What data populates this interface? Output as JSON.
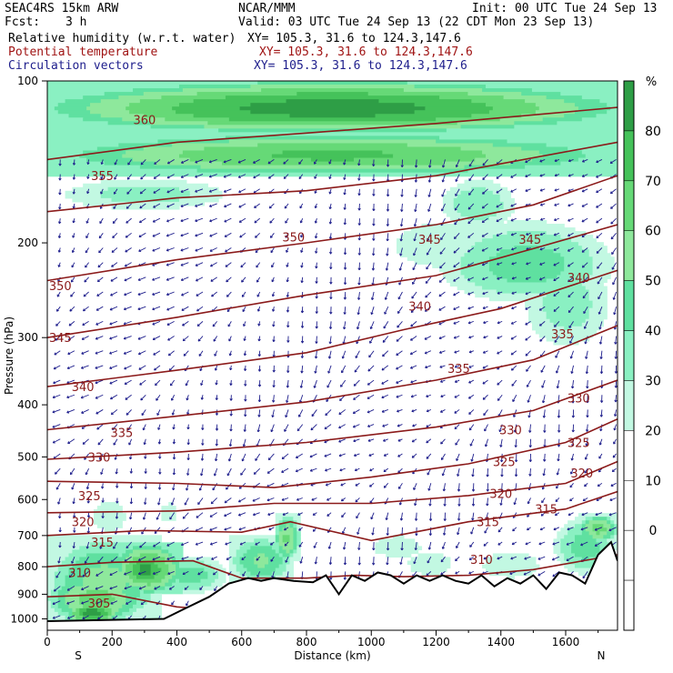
{
  "header": {
    "model": "SEAC4RS 15km ARW",
    "org": "NCAR/MMM",
    "init": "Init: 00 UTC Tue 24 Sep 13",
    "fcst_label": "Fcst:",
    "fcst_value": "3 h",
    "valid": "Valid: 03 UTC Tue 24 Sep 13 (22 CDT Mon 23 Sep 13)",
    "fields": [
      {
        "name": "Relative humidity (w.r.t. water)",
        "xy": "XY= 105.3, 31.6 to 124.3,147.6",
        "color": "#000000"
      },
      {
        "name": "Potential temperature",
        "xy": "XY= 105.3, 31.6 to 124.3,147.6",
        "color": "#a01414"
      },
      {
        "name": "Circulation vectors",
        "xy": "XY= 105.3, 31.6 to 124.3,147.6",
        "color": "#1e1e8c"
      }
    ]
  },
  "chart_data": {
    "type": "cross-section",
    "xlabel": "Distance (km)",
    "ylabel": "Pressure (hPa)",
    "xlim": [
      0,
      1760
    ],
    "ylim": [
      100,
      1050
    ],
    "y_scale": "log",
    "x_ticks": [
      0,
      200,
      400,
      600,
      800,
      1000,
      1200,
      1400,
      1600
    ],
    "y_ticks": [
      100,
      200,
      300,
      400,
      500,
      600,
      700,
      800,
      900,
      1000
    ],
    "endpoint_labels": {
      "left": "S",
      "right": "N"
    },
    "colorbar": {
      "unit": "%",
      "labels": [
        80,
        70,
        60,
        50,
        40,
        30,
        20,
        10,
        0
      ],
      "bands": [
        {
          "min": 90,
          "max": 100,
          "color": "#2e9e46"
        },
        {
          "min": 80,
          "max": 90,
          "color": "#45c25a"
        },
        {
          "min": 70,
          "max": 80,
          "color": "#66d977"
        },
        {
          "min": 60,
          "max": 70,
          "color": "#8ee89c"
        },
        {
          "min": 50,
          "max": 60,
          "color": "#5fe0a0"
        },
        {
          "min": 40,
          "max": 50,
          "color": "#8af0c2"
        },
        {
          "min": 30,
          "max": 40,
          "color": "#c2f8e2"
        },
        {
          "min": 20,
          "max": 30,
          "color": "#ffffff"
        },
        {
          "min": 10,
          "max": 20,
          "color": "#ffffff"
        },
        {
          "min": 0,
          "max": 10,
          "color": "#ffffff"
        },
        {
          "min": -10,
          "max": 0,
          "color": "#ffffff"
        }
      ]
    },
    "terrain_surface_pressure": {
      "x": [
        0,
        360,
        420,
        500,
        560,
        620,
        660,
        700,
        760,
        820,
        860,
        900,
        940,
        980,
        1020,
        1060,
        1100,
        1140,
        1180,
        1220,
        1260,
        1300,
        1340,
        1380,
        1420,
        1460,
        1500,
        1540,
        1580,
        1620,
        1660,
        1700,
        1740,
        1760
      ],
      "p": [
        1010,
        1000,
        960,
        910,
        860,
        840,
        850,
        840,
        850,
        855,
        830,
        900,
        830,
        850,
        820,
        830,
        860,
        830,
        850,
        830,
        850,
        860,
        830,
        870,
        840,
        860,
        830,
        880,
        820,
        830,
        860,
        760,
        720,
        780
      ]
    },
    "isentropes": [
      {
        "theta": 360,
        "x": [
          0,
          400,
          800,
          1200,
          1760
        ],
        "p": [
          140,
          130,
          125,
          120,
          112
        ]
      },
      {
        "theta": 355,
        "x": [
          0,
          400,
          800,
          1200,
          1760
        ],
        "p": [
          175,
          165,
          160,
          150,
          130
        ]
      },
      {
        "theta": 350,
        "x": [
          0,
          400,
          800,
          1200,
          1500,
          1760
        ],
        "p": [
          235,
          215,
          200,
          185,
          170,
          150
        ]
      },
      {
        "theta": 345,
        "x": [
          0,
          400,
          800,
          1200,
          1500,
          1760
        ],
        "p": [
          300,
          275,
          250,
          230,
          205,
          185
        ]
      },
      {
        "theta": 340,
        "x": [
          0,
          400,
          800,
          1100,
          1400,
          1760
        ],
        "p": [
          370,
          345,
          320,
          290,
          265,
          225
        ]
      },
      {
        "theta": 335,
        "x": [
          0,
          400,
          800,
          1200,
          1500,
          1760
        ],
        "p": [
          445,
          420,
          395,
          360,
          330,
          285
        ]
      },
      {
        "theta": 330,
        "x": [
          0,
          400,
          800,
          1200,
          1500,
          1760
        ],
        "p": [
          505,
          490,
          470,
          440,
          410,
          360
        ]
      },
      {
        "theta": 325,
        "x": [
          0,
          400,
          700,
          1000,
          1300,
          1600,
          1760
        ],
        "p": [
          555,
          560,
          570,
          545,
          515,
          470,
          425
        ]
      },
      {
        "theta": 320,
        "x": [
          0,
          400,
          700,
          1000,
          1300,
          1600,
          1760
        ],
        "p": [
          635,
          630,
          610,
          610,
          590,
          560,
          510
        ]
      },
      {
        "theta": 315,
        "x": [
          0,
          300,
          600,
          750,
          1000,
          1300,
          1600,
          1760
        ],
        "p": [
          700,
          685,
          690,
          660,
          715,
          660,
          625,
          580
        ]
      },
      {
        "theta": 310,
        "x": [
          0,
          200,
          450,
          600,
          700,
          800,
          950,
          1100,
          1300,
          1500,
          1760
        ],
        "p": [
          800,
          785,
          780,
          840,
          840,
          840,
          830,
          835,
          830,
          810,
          760
        ]
      },
      {
        "theta": 305,
        "x": [
          0,
          200,
          400,
          500
        ],
        "p": [
          910,
          900,
          950,
          960
        ]
      }
    ],
    "isentrope_labels": [
      {
        "text": "360",
        "x": 300,
        "p": 118
      },
      {
        "text": "355",
        "x": 170,
        "p": 150
      },
      {
        "text": "350",
        "x": 40,
        "p": 240
      },
      {
        "text": "350",
        "x": 760,
        "p": 195
      },
      {
        "text": "345",
        "x": 40,
        "p": 300
      },
      {
        "text": "345",
        "x": 1180,
        "p": 197
      },
      {
        "text": "345",
        "x": 1490,
        "p": 197
      },
      {
        "text": "340",
        "x": 110,
        "p": 370
      },
      {
        "text": "340",
        "x": 1150,
        "p": 262
      },
      {
        "text": "340",
        "x": 1640,
        "p": 232
      },
      {
        "text": "335",
        "x": 230,
        "p": 450
      },
      {
        "text": "335",
        "x": 1270,
        "p": 342
      },
      {
        "text": "335",
        "x": 1590,
        "p": 295
      },
      {
        "text": "330",
        "x": 160,
        "p": 500
      },
      {
        "text": "330",
        "x": 1430,
        "p": 445
      },
      {
        "text": "330",
        "x": 1640,
        "p": 388
      },
      {
        "text": "325",
        "x": 130,
        "p": 590
      },
      {
        "text": "325",
        "x": 1410,
        "p": 510
      },
      {
        "text": "325",
        "x": 1640,
        "p": 470
      },
      {
        "text": "320",
        "x": 110,
        "p": 660
      },
      {
        "text": "320",
        "x": 1400,
        "p": 585
      },
      {
        "text": "320",
        "x": 1650,
        "p": 535
      },
      {
        "text": "315",
        "x": 170,
        "p": 720
      },
      {
        "text": "315",
        "x": 1360,
        "p": 660
      },
      {
        "text": "315",
        "x": 1540,
        "p": 625
      },
      {
        "text": "310",
        "x": 100,
        "p": 820
      },
      {
        "text": "310",
        "x": 1340,
        "p": 775
      },
      {
        "text": "305",
        "x": 160,
        "p": 935
      }
    ]
  }
}
